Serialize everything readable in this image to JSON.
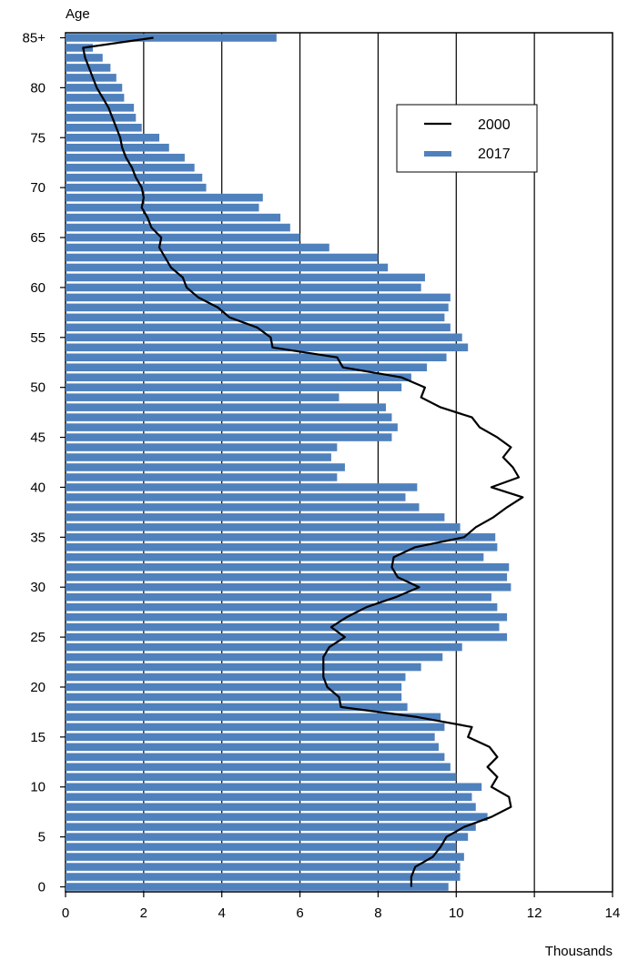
{
  "chart_data": {
    "type": "bar",
    "orientation": "horizontal",
    "ylabel": "Age",
    "xlabel": "Thousands",
    "xlim": [
      0,
      14
    ],
    "x_ticks": [
      "0",
      "2",
      "4",
      "6",
      "8",
      "10",
      "12",
      "14"
    ],
    "y_tick_labels": [
      {
        "age": 0,
        "label": "0"
      },
      {
        "age": 5,
        "label": "5"
      },
      {
        "age": 10,
        "label": "10"
      },
      {
        "age": 15,
        "label": "15"
      },
      {
        "age": 20,
        "label": "20"
      },
      {
        "age": 25,
        "label": "25"
      },
      {
        "age": 30,
        "label": "30"
      },
      {
        "age": 35,
        "label": "35"
      },
      {
        "age": 40,
        "label": "40"
      },
      {
        "age": 45,
        "label": "45"
      },
      {
        "age": 50,
        "label": "50"
      },
      {
        "age": 55,
        "label": "55"
      },
      {
        "age": 60,
        "label": "60"
      },
      {
        "age": 65,
        "label": "65"
      },
      {
        "age": 70,
        "label": "70"
      },
      {
        "age": 75,
        "label": "75"
      },
      {
        "age": 80,
        "label": "80"
      },
      {
        "age": 85,
        "label": "85+"
      }
    ],
    "grid": "vertical",
    "legend_position": "top-right",
    "ages": [
      0,
      1,
      2,
      3,
      4,
      5,
      6,
      7,
      8,
      9,
      10,
      11,
      12,
      13,
      14,
      15,
      16,
      17,
      18,
      19,
      20,
      21,
      22,
      23,
      24,
      25,
      26,
      27,
      28,
      29,
      30,
      31,
      32,
      33,
      34,
      35,
      36,
      37,
      38,
      39,
      40,
      41,
      42,
      43,
      44,
      45,
      46,
      47,
      48,
      49,
      50,
      51,
      52,
      53,
      54,
      55,
      56,
      57,
      58,
      59,
      60,
      61,
      62,
      63,
      64,
      65,
      66,
      67,
      68,
      69,
      70,
      71,
      72,
      73,
      74,
      75,
      76,
      77,
      78,
      79,
      80,
      81,
      82,
      83,
      84,
      85
    ],
    "series": [
      {
        "name": "2017",
        "kind": "bar",
        "color": "#4f81bd",
        "values": [
          9.8,
          10.1,
          10.1,
          10.2,
          10.0,
          10.3,
          10.5,
          10.8,
          10.5,
          10.4,
          10.65,
          10.0,
          9.85,
          9.7,
          9.55,
          9.45,
          9.7,
          9.6,
          8.75,
          8.6,
          8.6,
          8.7,
          9.1,
          9.65,
          10.15,
          11.3,
          11.1,
          11.3,
          11.05,
          10.9,
          11.4,
          11.3,
          11.35,
          10.7,
          11.05,
          11.0,
          10.1,
          9.7,
          9.05,
          8.7,
          9.0,
          6.95,
          7.15,
          6.8,
          6.95,
          8.35,
          8.5,
          8.35,
          8.2,
          7.0,
          8.6,
          8.85,
          9.25,
          9.75,
          10.3,
          10.15,
          9.85,
          9.7,
          9.8,
          9.85,
          9.1,
          9.2,
          8.25,
          8.0,
          6.75,
          6.0,
          5.75,
          5.5,
          4.95,
          5.05,
          3.6,
          3.5,
          3.3,
          3.05,
          2.65,
          2.4,
          1.95,
          1.8,
          1.75,
          1.5,
          1.45,
          1.3,
          1.15,
          0.95,
          0.7,
          5.4
        ]
      },
      {
        "name": "2000",
        "kind": "line",
        "color": "#000000",
        "values": [
          8.85,
          8.85,
          8.95,
          9.4,
          9.6,
          9.75,
          10.2,
          10.9,
          11.4,
          11.35,
          10.9,
          11.05,
          10.8,
          11.05,
          10.85,
          10.3,
          10.4,
          9.0,
          7.05,
          7.0,
          6.7,
          6.6,
          6.6,
          6.6,
          6.75,
          7.15,
          6.8,
          7.2,
          7.7,
          8.45,
          9.05,
          8.5,
          8.35,
          8.4,
          8.95,
          10.2,
          10.5,
          10.95,
          11.3,
          11.7,
          10.9,
          11.6,
          11.45,
          11.2,
          11.4,
          11.05,
          10.6,
          10.4,
          9.6,
          9.1,
          9.2,
          8.6,
          7.1,
          6.95,
          5.3,
          5.25,
          4.9,
          4.2,
          3.9,
          3.4,
          3.1,
          3.0,
          2.7,
          2.55,
          2.4,
          2.45,
          2.2,
          2.1,
          1.95,
          2.0,
          1.95,
          1.8,
          1.7,
          1.55,
          1.45,
          1.4,
          1.3,
          1.2,
          1.1,
          0.95,
          0.8,
          0.7,
          0.6,
          0.5,
          0.45,
          2.25
        ]
      }
    ]
  }
}
